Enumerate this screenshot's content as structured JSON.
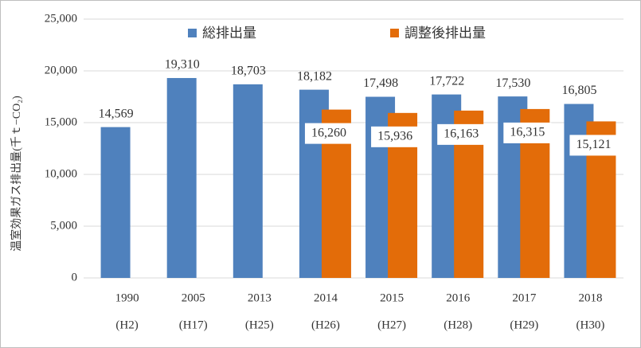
{
  "chart_data": {
    "type": "bar",
    "y_label": "温室効果ガス排出量(千ｔ−CO₂)",
    "categories": [
      [
        "1990",
        "(H2)"
      ],
      [
        "2005",
        "(H17)"
      ],
      [
        "2013",
        "(H25)"
      ],
      [
        "2014",
        "(H26)"
      ],
      [
        "2015",
        "(H27)"
      ],
      [
        "2016",
        "(H28)"
      ],
      [
        "2017",
        "(H29)"
      ],
      [
        "2018",
        "(H30)"
      ]
    ],
    "series": [
      {
        "name": "総排出量",
        "color": "#4f81bd",
        "values": [
          14569,
          19310,
          18703,
          18182,
          17498,
          17722,
          17530,
          16805
        ],
        "value_labels": [
          "14,569",
          "19,310",
          "18,703",
          "18,182",
          "17,498",
          "17,722",
          "17,530",
          "16,805"
        ]
      },
      {
        "name": "調整後排出量",
        "color": "#e36c09",
        "values": [
          null,
          null,
          null,
          16260,
          15936,
          16163,
          16315,
          15121
        ],
        "value_labels": [
          null,
          null,
          null,
          "16,260",
          "15,936",
          "16,163",
          "16,315",
          "15,121"
        ]
      }
    ],
    "ylim": [
      0,
      25000
    ],
    "yticks": [
      0,
      {
        "value": 5000,
        "label": "5,000"
      },
      {
        "value": 10000,
        "label": "10,000"
      },
      {
        "value": 15000,
        "label": "15,000"
      },
      {
        "value": 20000,
        "label": "20,000"
      },
      {
        "value": 25000,
        "label": "25,000"
      }
    ],
    "grid": true,
    "legend": "top"
  }
}
